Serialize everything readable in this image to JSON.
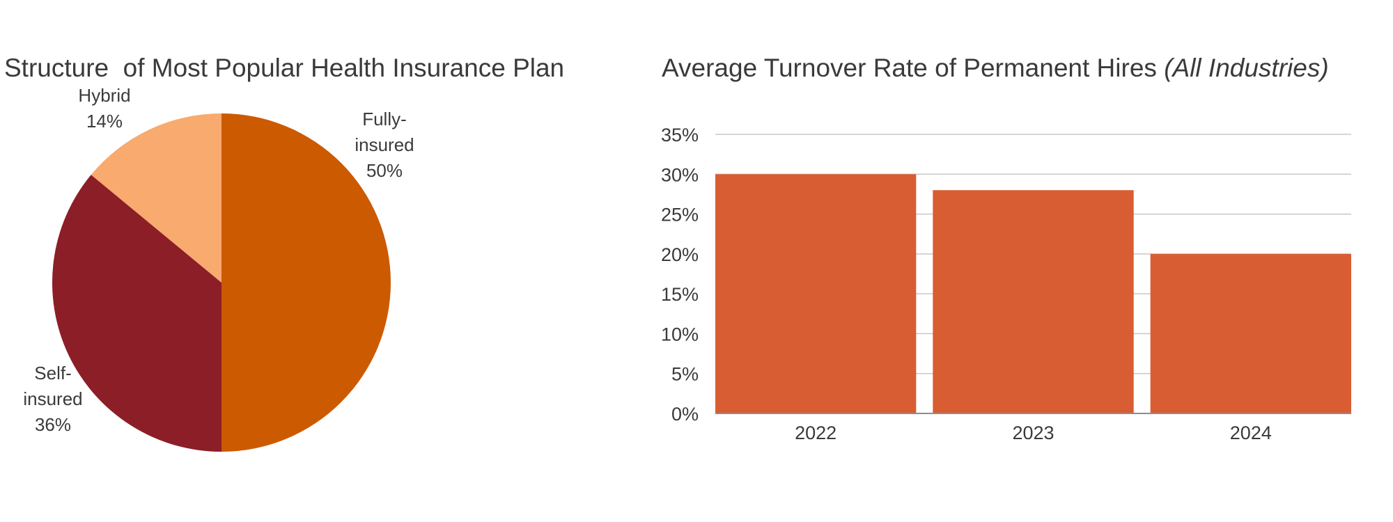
{
  "chart_data": [
    {
      "type": "pie",
      "title": "Structure  of Most Popular Health Insurance Plan",
      "slices": [
        {
          "label_lines": [
            "Fully-",
            "insured",
            "50%"
          ],
          "value": 50,
          "color": "#cc5a00"
        },
        {
          "label_lines": [
            "Self-",
            "insured",
            "36%"
          ],
          "value": 36,
          "color": "#8b1e27"
        },
        {
          "label_lines": [
            "Hybrid",
            "14%"
          ],
          "value": 14,
          "color": "#f8aa6f"
        }
      ]
    },
    {
      "type": "bar",
      "title": "Average Turnover Rate of Permanent Hires",
      "title_italic": "(All Industries)",
      "categories": [
        "2022",
        "2023",
        "2024"
      ],
      "values": [
        30,
        28,
        20
      ],
      "ylim": [
        0,
        35
      ],
      "yticks": [
        "0%",
        "5%",
        "10%",
        "15%",
        "20%",
        "25%",
        "30%",
        "35%"
      ],
      "bar_color": "#d95d33",
      "grid": true
    }
  ]
}
